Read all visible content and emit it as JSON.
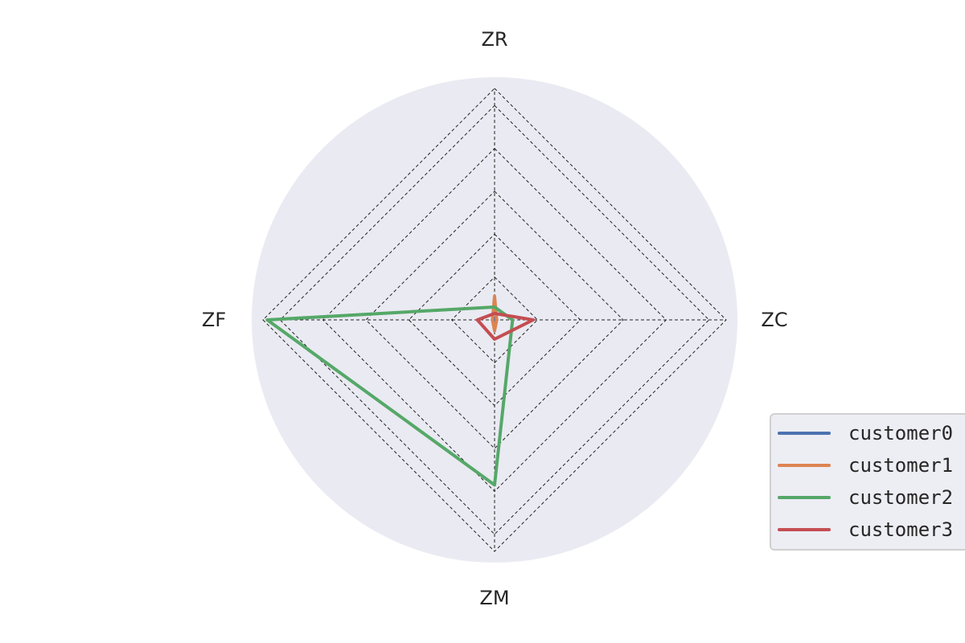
{
  "chart_data": {
    "type": "radar",
    "axes": [
      "ZR",
      "ZC",
      "ZM",
      "ZF"
    ],
    "rmax": 5.4,
    "rings": [
      1,
      2,
      3,
      4,
      5
    ],
    "grid": true,
    "legend_position": "bottom-right",
    "series": [
      {
        "name": "customer0",
        "color": "#4c72b0",
        "values": [
          0.05,
          0.05,
          0.05,
          0.05
        ]
      },
      {
        "name": "customer1",
        "color": "#dd8452",
        "values": [
          0.55,
          0.05,
          0.25,
          0.05
        ]
      },
      {
        "name": "customer2",
        "color": "#55a868",
        "values": [
          0.3,
          0.42,
          3.85,
          5.3
        ]
      },
      {
        "name": "customer3",
        "color": "#c44e52",
        "values": [
          0.15,
          0.9,
          0.45,
          0.4
        ]
      }
    ]
  }
}
